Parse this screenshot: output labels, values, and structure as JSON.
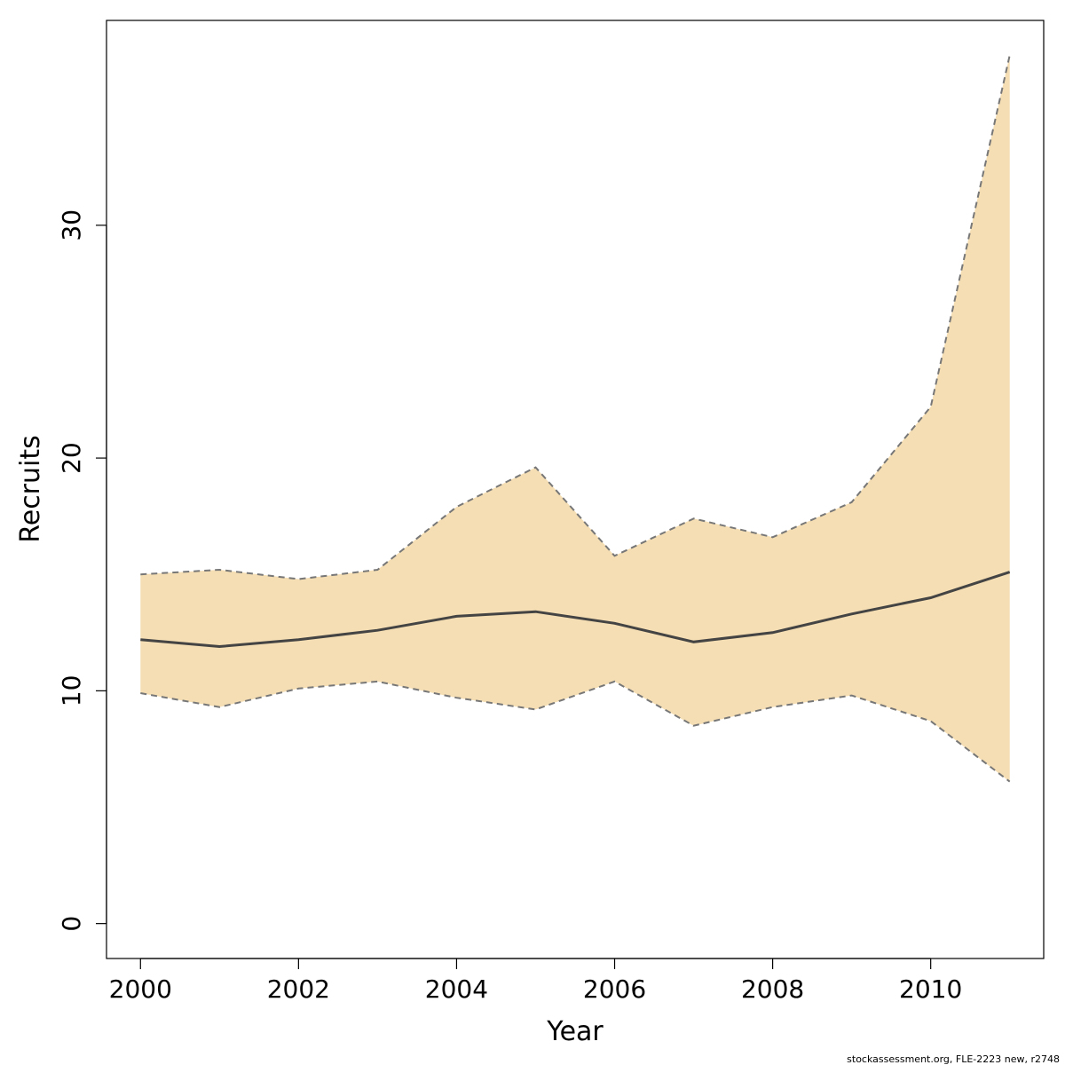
{
  "chart_data": {
    "type": "area",
    "xlabel": "Year",
    "ylabel": "Recruits",
    "xlim": [
      1999.57,
      2011.43
    ],
    "ylim": [
      -1.5,
      38.8
    ],
    "x_ticks": [
      2000,
      2002,
      2004,
      2006,
      2008,
      2010
    ],
    "y_ticks": [
      0,
      10,
      20,
      30
    ],
    "x_tick_labels": [
      "2000",
      "2002",
      "2004",
      "2006",
      "2008",
      "2010"
    ],
    "y_tick_labels": [
      "0",
      "10",
      "20",
      "30"
    ],
    "x": [
      2000,
      2001,
      2002,
      2003,
      2004,
      2005,
      2006,
      2007,
      2008,
      2009,
      2010,
      2011
    ],
    "series": [
      {
        "role": "median",
        "values": [
          12.2,
          11.9,
          12.2,
          12.6,
          13.2,
          13.4,
          12.9,
          12.1,
          12.5,
          13.3,
          14.0,
          15.1
        ]
      },
      {
        "role": "upper",
        "values": [
          15.0,
          15.2,
          14.8,
          15.2,
          17.9,
          19.6,
          15.8,
          17.4,
          16.6,
          18.1,
          22.2,
          37.3
        ]
      },
      {
        "role": "lower",
        "values": [
          9.9,
          9.3,
          10.1,
          10.4,
          9.7,
          9.2,
          10.4,
          8.5,
          9.3,
          9.8,
          8.7,
          6.1
        ]
      }
    ],
    "band_color": "#f5deb3",
    "band_edge_color": "#777777",
    "median_color": "#444444",
    "grid": false,
    "legend": "none"
  },
  "caption": "stockassessment.org, FLE-2223 new, r2748"
}
